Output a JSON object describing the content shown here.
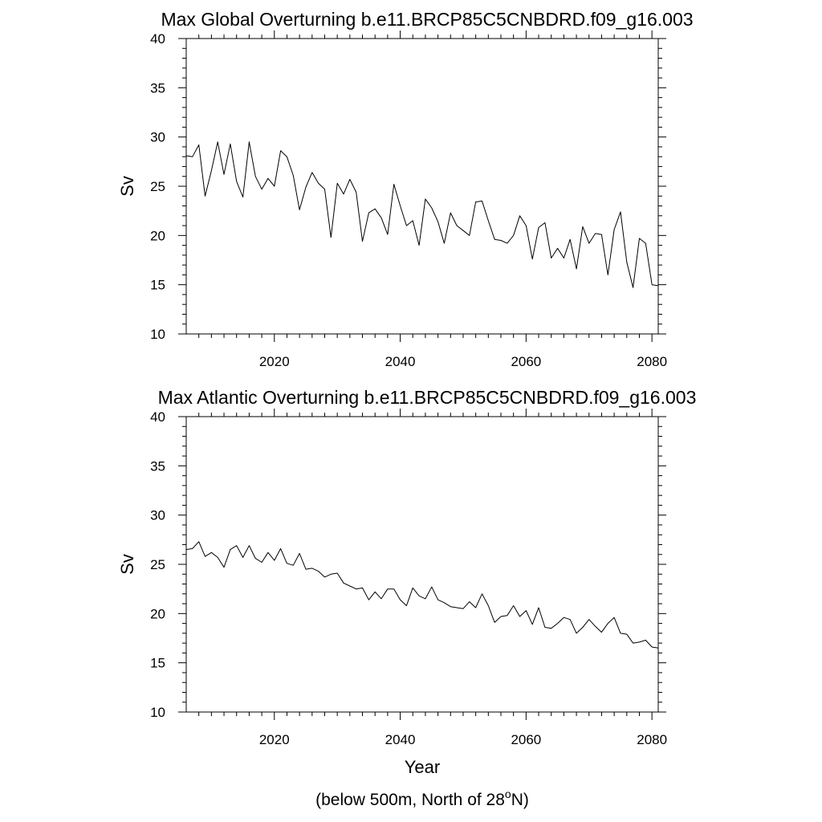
{
  "footnote": {
    "prefix": "(below 500m, North of 28",
    "superscript": "o",
    "suffix": "N)"
  },
  "chart_data": [
    {
      "type": "line",
      "title": "Max Global Overturning b.e11.BRCP85C5CNBDRD.f09_g16.003",
      "xlabel": "",
      "ylabel": "Sv",
      "xlim": [
        2006,
        2081
      ],
      "ylim": [
        10,
        40
      ],
      "xticks": [
        2020,
        2040,
        2060,
        2080
      ],
      "yticks": [
        10,
        15,
        20,
        25,
        30,
        35,
        40
      ],
      "grid": false,
      "series": [
        {
          "x": [
            2006,
            2007,
            2008,
            2009,
            2010,
            2011,
            2012,
            2013,
            2014,
            2015,
            2016,
            2017,
            2018,
            2019,
            2020,
            2021,
            2022,
            2023,
            2024,
            2025,
            2026,
            2027,
            2028,
            2029,
            2030,
            2031,
            2032,
            2033,
            2034,
            2035,
            2036,
            2037,
            2038,
            2039,
            2040,
            2041,
            2042,
            2043,
            2044,
            2045,
            2046,
            2047,
            2048,
            2049,
            2050,
            2051,
            2052,
            2053,
            2054,
            2055,
            2056,
            2057,
            2058,
            2059,
            2060,
            2061,
            2062,
            2063,
            2064,
            2065,
            2066,
            2067,
            2068,
            2069,
            2070,
            2071,
            2072,
            2073,
            2074,
            2075,
            2076,
            2077,
            2078,
            2079,
            2080,
            2081
          ],
          "y": [
            28.1,
            28.0,
            29.2,
            24.0,
            26.6,
            29.5,
            26.2,
            29.3,
            25.5,
            23.9,
            29.5,
            26.0,
            24.7,
            25.8,
            25.0,
            28.6,
            28.0,
            26.1,
            22.6,
            24.9,
            26.4,
            25.3,
            24.7,
            19.8,
            25.3,
            24.2,
            25.7,
            24.4,
            19.4,
            22.3,
            22.7,
            21.8,
            20.1,
            25.2,
            23.0,
            21.0,
            21.5,
            19.0,
            23.7,
            22.8,
            21.4,
            19.2,
            22.3,
            21.0,
            20.5,
            20.0,
            23.4,
            23.5,
            21.5,
            19.6,
            19.5,
            19.2,
            20.0,
            22.0,
            21.0,
            17.6,
            20.8,
            21.3,
            17.7,
            18.7,
            17.7,
            19.6,
            16.6,
            20.9,
            19.2,
            20.2,
            20.1,
            16.0,
            20.6,
            22.4,
            17.3,
            14.7,
            19.7,
            19.2,
            15.0,
            14.9
          ]
        }
      ]
    },
    {
      "type": "line",
      "title": "Max Atlantic Overturning b.e11.BRCP85C5CNBDRD.f09_g16.003",
      "xlabel": "Year",
      "ylabel": "Sv",
      "xlim": [
        2006,
        2081
      ],
      "ylim": [
        10,
        40
      ],
      "xticks": [
        2020,
        2040,
        2060,
        2080
      ],
      "yticks": [
        10,
        15,
        20,
        25,
        30,
        35,
        40
      ],
      "grid": false,
      "series": [
        {
          "x": [
            2006,
            2007,
            2008,
            2009,
            2010,
            2011,
            2012,
            2013,
            2014,
            2015,
            2016,
            2017,
            2018,
            2019,
            2020,
            2021,
            2022,
            2023,
            2024,
            2025,
            2026,
            2027,
            2028,
            2029,
            2030,
            2031,
            2032,
            2033,
            2034,
            2035,
            2036,
            2037,
            2038,
            2039,
            2040,
            2041,
            2042,
            2043,
            2044,
            2045,
            2046,
            2047,
            2048,
            2049,
            2050,
            2051,
            2052,
            2053,
            2054,
            2055,
            2056,
            2057,
            2058,
            2059,
            2060,
            2061,
            2062,
            2063,
            2064,
            2065,
            2066,
            2067,
            2068,
            2069,
            2070,
            2071,
            2072,
            2073,
            2074,
            2075,
            2076,
            2077,
            2078,
            2079,
            2080,
            2081
          ],
          "y": [
            26.5,
            26.6,
            27.3,
            25.8,
            26.2,
            25.7,
            24.7,
            26.5,
            26.9,
            25.7,
            26.9,
            25.6,
            25.2,
            26.2,
            25.4,
            26.6,
            25.1,
            24.9,
            26.1,
            24.5,
            24.6,
            24.3,
            23.7,
            24.0,
            24.1,
            23.1,
            22.8,
            22.5,
            22.6,
            21.4,
            22.2,
            21.5,
            22.5,
            22.5,
            21.4,
            20.8,
            22.6,
            21.8,
            21.5,
            22.7,
            21.4,
            21.1,
            20.7,
            20.6,
            20.5,
            21.2,
            20.6,
            22.0,
            20.8,
            19.1,
            19.7,
            19.8,
            20.8,
            19.7,
            20.3,
            18.9,
            20.6,
            18.6,
            18.5,
            19.0,
            19.6,
            19.4,
            18.0,
            18.6,
            19.4,
            18.7,
            18.1,
            19.0,
            19.6,
            18.0,
            17.9,
            17.0,
            17.1,
            17.3,
            16.6,
            16.5
          ]
        }
      ]
    }
  ]
}
